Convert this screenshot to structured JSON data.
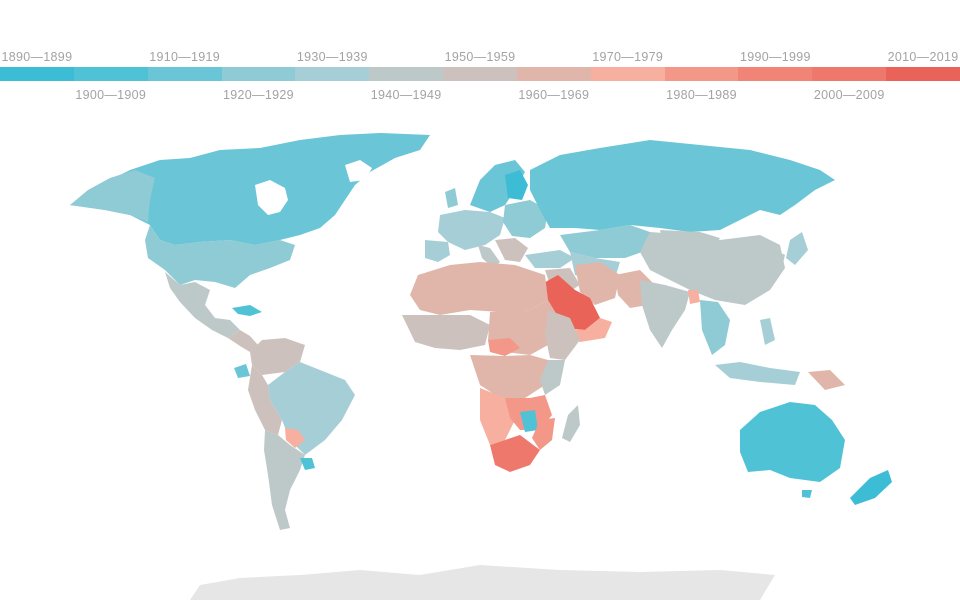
{
  "legend": {
    "items": [
      {
        "label": "1890—1899",
        "color": "#3cbdd5"
      },
      {
        "label": "1900—1909",
        "color": "#4fc2d6"
      },
      {
        "label": "1910—1919",
        "color": "#6ac5d6"
      },
      {
        "label": "1920—1929",
        "color": "#8ecbd5"
      },
      {
        "label": "1930—1939",
        "color": "#a6ced6"
      },
      {
        "label": "1940—1949",
        "color": "#bdc8c9"
      },
      {
        "label": "1950—1959",
        "color": "#cdc1be"
      },
      {
        "label": "1960—1969",
        "color": "#e0b6aa"
      },
      {
        "label": "1970—1979",
        "color": "#f7b09f"
      },
      {
        "label": "1980—1989",
        "color": "#f39788"
      },
      {
        "label": "1990—1999",
        "color": "#f08577"
      },
      {
        "label": "2000—2009",
        "color": "#ee786c"
      },
      {
        "label": "2010—2019",
        "color": "#ea6358"
      }
    ]
  },
  "map": {
    "antarctica_color": "#e6e6e6"
  }
}
